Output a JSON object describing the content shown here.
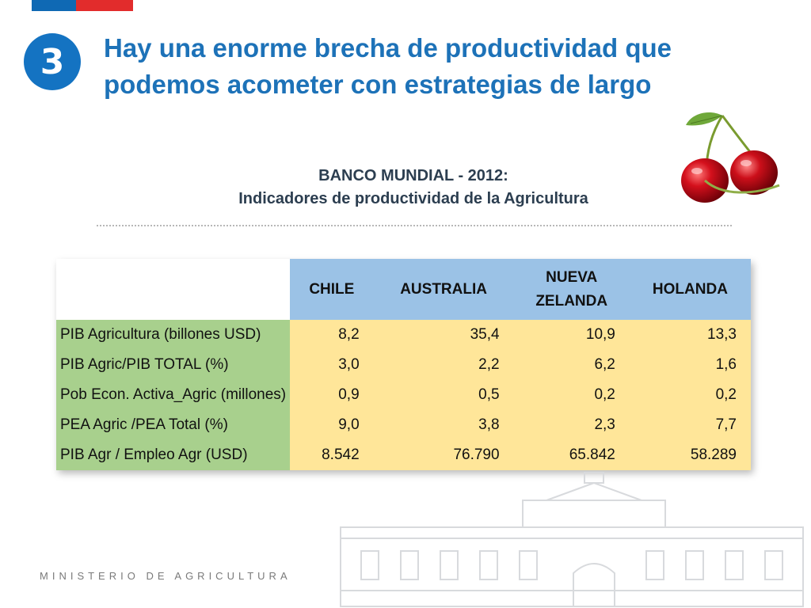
{
  "slide": {
    "number": "3",
    "title": "Hay una enorme brecha de productividad que podemos acometer con estrategias de largo",
    "subtitle_line1": "BANCO MUNDIAL - 2012:",
    "subtitle_line2": "Indicadores de productividad de la Agricultura",
    "footer": "MINISTERIO DE AGRICULTURA",
    "decor_icon": "cherry-icon",
    "background_icon": "government-building-icon"
  },
  "colors": {
    "accent_blue": "#1d72b8",
    "header_fill": "#9bc2e6",
    "label_fill": "#a8d08d",
    "value_fill": "#ffe699"
  },
  "table": {
    "headers": [
      {
        "line1": "CHILE",
        "line2": ""
      },
      {
        "line1": "AUSTRALIA",
        "line2": ""
      },
      {
        "line1": "NUEVA",
        "line2": "ZELANDA"
      },
      {
        "line1": "HOLANDA",
        "line2": ""
      }
    ],
    "rows": [
      {
        "label": "PIB Agricultura (billones USD)",
        "values": [
          "8,2",
          "35,4",
          "10,9",
          "13,3"
        ]
      },
      {
        "label": "PIB Agric/PIB TOTAL (%)",
        "values": [
          "3,0",
          "2,2",
          "6,2",
          "1,6"
        ]
      },
      {
        "label": "Pob Econ. Activa_Agric (millones)",
        "values": [
          "0,9",
          "0,5",
          "0,2",
          "0,2"
        ]
      },
      {
        "label": "PEA Agric /PEA Total (%)",
        "values": [
          "9,0",
          "3,8",
          "2,3",
          "7,7"
        ]
      },
      {
        "label": "PIB Agr / Empleo Agr (USD)",
        "values": [
          "8.542",
          "76.790",
          "65.842",
          "58.289"
        ]
      }
    ]
  }
}
